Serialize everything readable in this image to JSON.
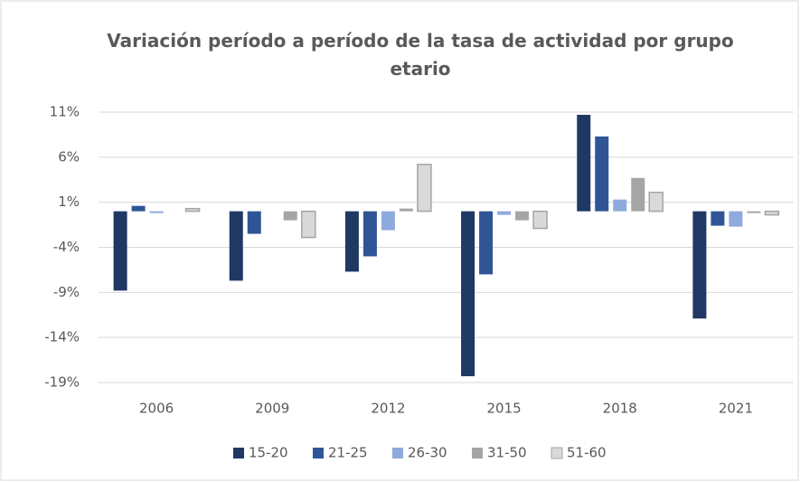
{
  "chart_data": {
    "type": "bar",
    "title": "Variación período a período de la tasa de actividad por grupo etario",
    "categories": [
      "2006",
      "2009",
      "2012",
      "2015",
      "2018",
      "2021"
    ],
    "series": [
      {
        "name": "15-20",
        "color": "#203864",
        "values": [
          -8.8,
          -7.7,
          -6.7,
          -18.3,
          10.7,
          -11.9
        ]
      },
      {
        "name": "21-25",
        "color": "#2f5597",
        "values": [
          0.6,
          -2.5,
          -5.0,
          -7.0,
          8.3,
          -1.6
        ]
      },
      {
        "name": "26-30",
        "color": "#8faadc",
        "values": [
          -0.2,
          0,
          -2.1,
          -0.4,
          1.3,
          -1.7
        ]
      },
      {
        "name": "31-50",
        "color": "#a5a5a5",
        "values": [
          0,
          -1.0,
          0.3,
          -1.0,
          3.7,
          -0.2
        ]
      },
      {
        "name": "51-60",
        "color": "#d9d9d9",
        "values": [
          0.3,
          -2.9,
          5.2,
          -1.9,
          2.1,
          -0.4
        ]
      }
    ],
    "ylim": [
      -19,
      11
    ],
    "yticks": [
      {
        "value": 11,
        "label": "11%"
      },
      {
        "value": 6,
        "label": "6%"
      },
      {
        "value": 1,
        "label": "1%"
      },
      {
        "value": -4,
        "label": "-4%"
      },
      {
        "value": -9,
        "label": "-9%"
      },
      {
        "value": -14,
        "label": "-14%"
      },
      {
        "value": -19,
        "label": "-19%"
      }
    ],
    "grid": true,
    "legend": "bottom"
  }
}
